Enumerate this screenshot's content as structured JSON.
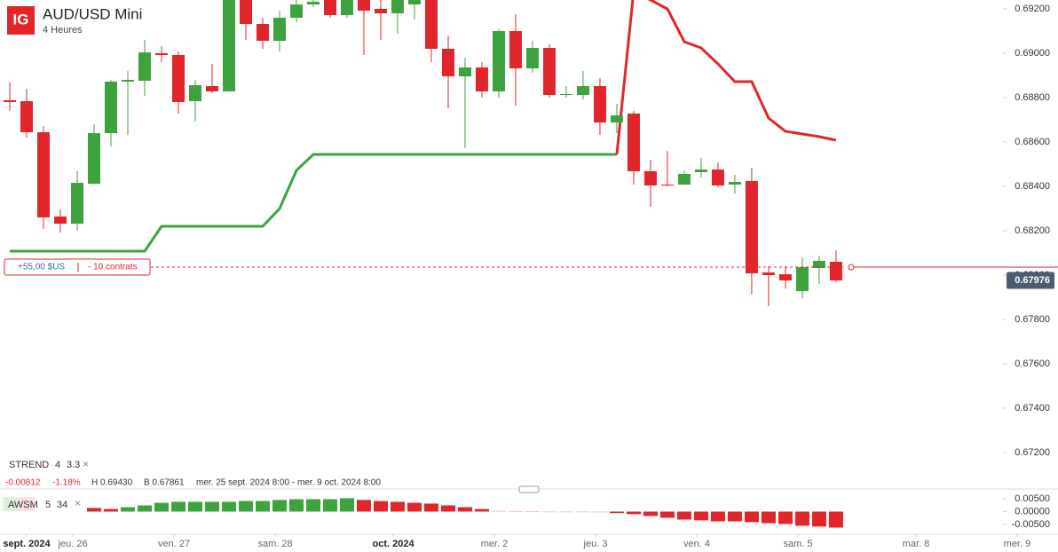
{
  "header": {
    "logo": "IG",
    "title": "AUD/USD Mini",
    "interval": "4 Heures"
  },
  "chart_data": [
    {
      "type": "candlestick",
      "open": [
        0.68788,
        0.68784,
        0.68644,
        0.68264,
        0.68232,
        0.68412,
        0.6864,
        0.68872,
        0.68876,
        0.69,
        0.68992,
        0.68784,
        0.68852,
        0.68828,
        0.6928,
        0.69132,
        0.69056,
        0.6916,
        0.6922,
        0.6926,
        0.69172,
        0.6926,
        0.692,
        0.6918,
        0.6922,
        0.6928,
        0.6902,
        0.68896,
        0.68936,
        0.68828,
        0.691,
        0.68932,
        0.69024,
        0.68812,
        0.68812,
        0.68852,
        0.68688,
        0.68728,
        0.68468,
        0.68408,
        0.68408,
        0.68464,
        0.68476,
        0.68408,
        0.68424,
        0.68012,
        0.68004,
        0.67928,
        0.68032,
        0.6806
      ],
      "high": [
        0.68868,
        0.6884,
        0.68672,
        0.68296,
        0.68468,
        0.6868,
        0.6888,
        0.6892,
        0.6906,
        0.69032,
        0.69008,
        0.6888,
        0.68952,
        0.6932,
        0.693,
        0.6916,
        0.69192,
        0.6926,
        0.6926,
        0.6928,
        0.693,
        0.6928,
        0.6924,
        0.6928,
        0.6926,
        0.6928,
        0.6908,
        0.6898,
        0.6896,
        0.69108,
        0.69176,
        0.69056,
        0.6904,
        0.68852,
        0.6892,
        0.68888,
        0.68772,
        0.6874,
        0.6852,
        0.6856,
        0.68472,
        0.68528,
        0.68508,
        0.68452,
        0.68484,
        0.6804,
        0.6804,
        0.6808,
        0.68088,
        0.68112
      ],
      "low": [
        0.6874,
        0.6862,
        0.68208,
        0.68192,
        0.682,
        0.68408,
        0.6858,
        0.68632,
        0.68808,
        0.6896,
        0.68728,
        0.68692,
        0.6882,
        0.68828,
        0.6906,
        0.6902,
        0.69008,
        0.6914,
        0.69208,
        0.6916,
        0.6916,
        0.68992,
        0.6906,
        0.69088,
        0.69152,
        0.6896,
        0.68752,
        0.68572,
        0.688,
        0.688,
        0.68764,
        0.68912,
        0.688,
        0.688,
        0.68792,
        0.68632,
        0.6864,
        0.68408,
        0.68308,
        0.684,
        0.68408,
        0.6844,
        0.68396,
        0.68368,
        0.67912,
        0.6786,
        0.6794,
        0.67896,
        0.6796,
        0.67968
      ],
      "close": [
        0.6878,
        0.68644,
        0.6826,
        0.68232,
        0.68416,
        0.6864,
        0.68872,
        0.6888,
        0.69004,
        0.68992,
        0.6878,
        0.68856,
        0.68828,
        0.6928,
        0.69132,
        0.69056,
        0.6916,
        0.6922,
        0.69232,
        0.69172,
        0.6926,
        0.69192,
        0.6918,
        0.6926,
        0.6924,
        0.6902,
        0.68896,
        0.68936,
        0.68828,
        0.691,
        0.68932,
        0.69024,
        0.68812,
        0.68816,
        0.68852,
        0.68688,
        0.6872,
        0.68468,
        0.68404,
        0.68404,
        0.68456,
        0.68476,
        0.68404,
        0.6842,
        0.68008,
        0.68,
        0.67976,
        0.68036,
        0.68064,
        0.67976
      ],
      "up_color": "#3ea33e",
      "down_color": "#e0262b",
      "series": [
        {
          "color": "#3ea33e",
          "values": [
            0.68108,
            0.68108,
            0.68108,
            0.68108,
            0.68108,
            0.68108,
            0.68108,
            0.68108,
            0.68108,
            0.6822,
            0.6822,
            0.6822,
            0.6822,
            0.6822,
            0.6822,
            0.6822,
            0.683,
            0.68472,
            0.68544,
            0.68544,
            0.68544,
            0.68544,
            0.68544,
            0.68544,
            0.68544,
            0.68544,
            0.68544,
            0.68544,
            0.68544,
            0.68544,
            0.68544,
            0.68544,
            0.68544,
            0.68544,
            0.68544,
            0.68544,
            0.68544,
            null,
            null,
            null,
            null,
            null,
            null,
            null,
            null,
            null,
            null,
            null,
            null,
            null
          ]
        },
        {
          "color": "#e0262b",
          "values": [
            null,
            null,
            null,
            null,
            null,
            null,
            null,
            null,
            null,
            null,
            null,
            null,
            null,
            null,
            null,
            null,
            null,
            null,
            null,
            null,
            null,
            null,
            null,
            null,
            null,
            null,
            null,
            null,
            null,
            null,
            null,
            null,
            null,
            null,
            null,
            null,
            0.68544,
            0.6928,
            0.6924,
            0.692,
            0.69052,
            0.69024,
            0.68952,
            0.68872,
            0.68872,
            0.68708,
            0.68648,
            0.68636,
            0.68624,
            0.68608
          ]
        }
      ],
      "xlim": [
        -0.58,
        58.9
      ],
      "xticks": [
        {
          "value": 1,
          "label": "sept. 2024"
        },
        {
          "value": 3.74,
          "label": "jeu. 26"
        },
        {
          "value": 9.74,
          "label": "ven. 27"
        },
        {
          "value": 15.74,
          "label": "sam. 28"
        },
        {
          "value": 22.74,
          "label": "oct. 2024"
        },
        {
          "value": 28.74,
          "label": "mer. 2"
        },
        {
          "value": 34.74,
          "label": "jeu. 3"
        },
        {
          "value": 40.74,
          "label": "ven. 4"
        },
        {
          "value": 46.74,
          "label": "sam. 5"
        },
        {
          "value": 53.74,
          "label": "mar. 8"
        },
        {
          "value": 59.74,
          "label": "mer. 9"
        }
      ],
      "ylim": [
        0.6706,
        0.6924
      ],
      "yticks": [
        {
          "value": 0.692,
          "label": "0.69200"
        },
        {
          "value": 0.69,
          "label": "0.69000"
        },
        {
          "value": 0.688,
          "label": "0.68800"
        },
        {
          "value": 0.686,
          "label": "0.68600"
        },
        {
          "value": 0.684,
          "label": "0.68400"
        },
        {
          "value": 0.682,
          "label": "0.68200"
        },
        {
          "value": 0.68,
          "label": "0.68000"
        },
        {
          "value": 0.678,
          "label": "0.67800"
        },
        {
          "value": 0.676,
          "label": "0.67600"
        },
        {
          "value": 0.674,
          "label": "0.67400"
        },
        {
          "value": 0.672,
          "label": "0.67200"
        }
      ],
      "last_price": 0.67976,
      "position": {
        "value": 0.68036,
        "pnl": "+55,00 $US",
        "size": "- 10 contrats"
      },
      "indicator": {
        "name": "STREND",
        "params": [
          "4",
          "3.3"
        ]
      },
      "stats": [
        "-0.00812",
        "-1.18%",
        "H 0.69430",
        "B 0.67861",
        "mer. 25 sept. 2024 8:00 - mer. 9 oct. 2024 8:00"
      ]
    },
    {
      "type": "oscillator",
      "indicator": {
        "name": "AWSM",
        "params": [
          "5",
          "34"
        ]
      },
      "values": [
        null,
        null,
        null,
        null,
        null,
        0.0014,
        0.001,
        0.0017,
        0.0024,
        0.0034,
        0.0038,
        0.0038,
        0.0038,
        0.0038,
        0.0041,
        0.0041,
        0.0045,
        0.0048,
        0.0048,
        0.0048,
        0.0052,
        0.0045,
        0.0041,
        0.0038,
        0.0034,
        0.0031,
        0.0024,
        0.0017,
        0.001,
        0.0003,
        0.0002,
        0.0001,
        0,
        0,
        -0.0001,
        -0.0003,
        -0.0006,
        -0.001,
        -0.0017,
        -0.0024,
        -0.0031,
        -0.0034,
        -0.0038,
        -0.0038,
        -0.0041,
        -0.0045,
        -0.0048,
        -0.0055,
        -0.0058,
        -0.0062
      ],
      "up_color": "#3ea33e",
      "down_color": "#e0262b",
      "xlim": [
        -0.58,
        58.9
      ],
      "ylim": [
        -0.0081,
        0.0067
      ],
      "yticks": [
        {
          "value": 0.005,
          "label": "0.00500"
        },
        {
          "value": 0,
          "label": "0.00000"
        },
        {
          "value": -0.005,
          "label": "-0.00500"
        }
      ]
    }
  ]
}
